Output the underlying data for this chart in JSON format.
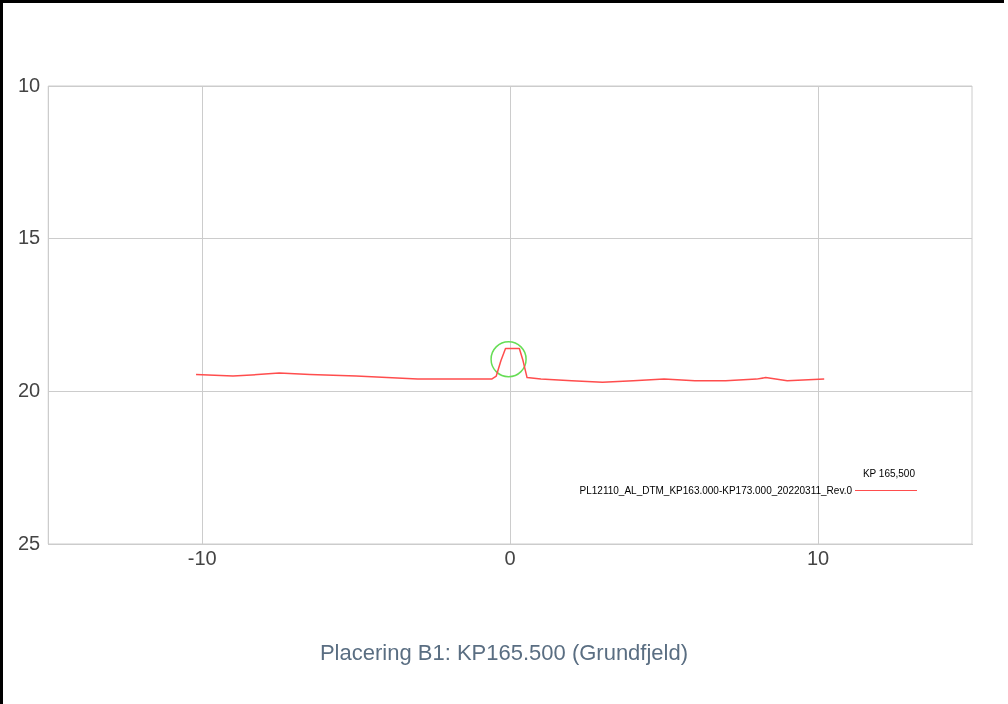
{
  "chart_data": {
    "type": "line",
    "xlim": [
      -15,
      15
    ],
    "xticks": [
      -10,
      0,
      10
    ],
    "ylim": [
      25,
      10
    ],
    "yticks": [
      10,
      15,
      20,
      25
    ],
    "grid": true,
    "legend": "bottom right",
    "legend_title": "KP 165,500",
    "marker": "none",
    "line_style": "solid",
    "series": [
      {
        "name": "PL12110_AL_DTM_KP163.000-KP173.000_20220311_Rev.0",
        "color": "#ff4d4d",
        "x": [
          -10.2,
          -9,
          -8.2,
          -7.5,
          -6.5,
          -5,
          -4,
          -3,
          -2,
          -1,
          -0.6,
          -0.45,
          -0.3,
          -0.15,
          0.3,
          0.42,
          0.55,
          1,
          2,
          3,
          4,
          5,
          6,
          7,
          8,
          8.3,
          9,
          10.2
        ],
        "values": [
          19.45,
          19.5,
          19.45,
          19.4,
          19.45,
          19.5,
          19.55,
          19.6,
          19.6,
          19.6,
          19.6,
          19.5,
          19.0,
          18.6,
          18.6,
          19.0,
          19.55,
          19.6,
          19.65,
          19.7,
          19.65,
          19.6,
          19.65,
          19.65,
          19.6,
          19.55,
          19.65,
          19.6
        ]
      },
      {
        "type": "scatter",
        "marker": "circle",
        "color": "#66dd55",
        "x": [
          -0.05
        ],
        "values": [
          18.95
        ]
      }
    ],
    "annotations": [
      "Placering B1: KP165.500 (Grundfjeld)"
    ]
  }
}
